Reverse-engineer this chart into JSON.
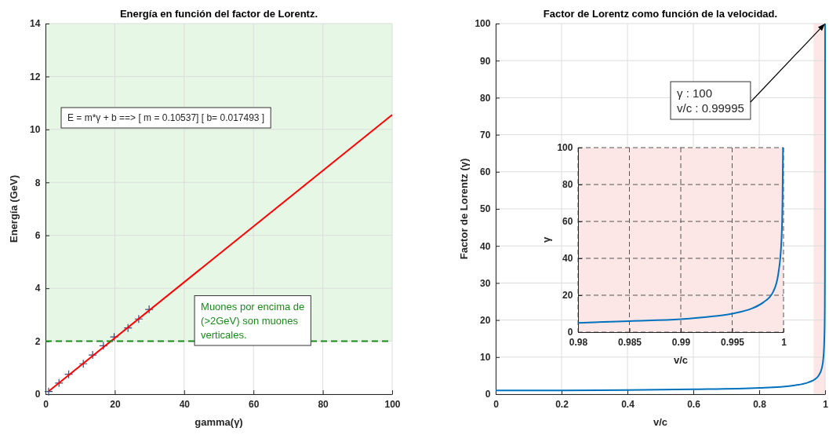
{
  "chart_data": [
    {
      "type": "scatter",
      "title": "Energía en función del factor de Lorentz.",
      "xlabel": "gamma(γ)",
      "ylabel": "Energía (GeV)",
      "xlim": [
        0,
        100
      ],
      "xticks": [
        0,
        20,
        40,
        60,
        80,
        100
      ],
      "ylim": [
        0,
        14
      ],
      "yticks": [
        0,
        2,
        4,
        6,
        8,
        10,
        12,
        14
      ],
      "grid": true,
      "marker": "cross",
      "x": [
        0.9,
        3.9,
        6.7,
        10.9,
        13.6,
        16.7,
        19.8,
        23.8,
        26.9,
        29.9
      ],
      "series": [
        {
          "color": "#3a4a7a",
          "values": [
            0.1,
            0.42,
            0.75,
            1.15,
            1.48,
            1.83,
            2.16,
            2.5,
            2.84,
            3.2
          ]
        },
        {
          "type": "line",
          "color": "#ff0000",
          "x": [
            1,
            100
          ],
          "values": [
            0.12,
            10.55
          ],
          "marker": "none"
        }
      ],
      "ref_lines": [
        {
          "axis": "y",
          "value": 2,
          "label": "Muones por encima de (>2GeV) son muones verticales.",
          "color": "#1a8a1a",
          "line_style": "dashed"
        }
      ],
      "bands": [
        {
          "axis": "y",
          "from": 2,
          "to": 14,
          "color": "#e6f7e6"
        }
      ],
      "annotations": [
        "E = m*γ + b ==> [ m = 0.10537] [ b= 0.017493 ]"
      ]
    },
    {
      "type": "line",
      "title": "Factor de Lorentz como función de la velocidad.",
      "xlabel": "v/c",
      "ylabel": "Factor de Lorentz (γ)",
      "xlim": [
        0,
        1
      ],
      "xticks": [
        0,
        0.2,
        0.4,
        0.6,
        0.8,
        1
      ],
      "ylim": [
        0,
        100
      ],
      "yticks": [
        0,
        10,
        20,
        30,
        40,
        50,
        60,
        70,
        80,
        90,
        100
      ],
      "grid": true,
      "x": [
        0,
        0.2,
        0.4,
        0.6,
        0.8,
        0.9,
        0.95,
        0.97,
        0.98,
        0.99,
        0.995,
        0.998,
        0.999,
        0.9995,
        0.9998,
        0.9999,
        0.99995
      ],
      "series": [
        {
          "color": "#0072bd",
          "values": [
            1,
            1,
            1.1,
            1.3,
            1.7,
            2.3,
            3.2,
            4.1,
            5,
            7,
            10,
            16,
            22,
            32,
            50,
            71,
            100
          ]
        }
      ],
      "bands": [
        {
          "axis": "x",
          "from": 0.965,
          "to": 1,
          "color": "#fde6e6"
        }
      ],
      "annotations": [
        {
          "text": "γ : 100\nv/c : 0.99995",
          "x": 0.99995,
          "y": 100
        }
      ]
    },
    {
      "type": "line",
      "xlabel": "v/c",
      "ylabel": "γ",
      "xlim": [
        0.98,
        1
      ],
      "xticks": [
        0.98,
        0.985,
        0.99,
        0.995,
        1
      ],
      "ylim": [
        0,
        100
      ],
      "yticks": [
        0,
        20,
        40,
        60,
        80,
        100
      ],
      "grid": true,
      "x": [
        0.98,
        0.985,
        0.99,
        0.993,
        0.995,
        0.997,
        0.998,
        0.999,
        0.9995,
        0.9998,
        0.9999,
        0.99995
      ],
      "series": [
        {
          "color": "#0072bd",
          "values": [
            5,
            6,
            7,
            8.5,
            10,
            13,
            16,
            22,
            32,
            50,
            71,
            100
          ]
        }
      ],
      "bands": [
        {
          "axis": "x",
          "from": 0.98,
          "to": 1,
          "color": "#fde6e6"
        }
      ]
    }
  ]
}
